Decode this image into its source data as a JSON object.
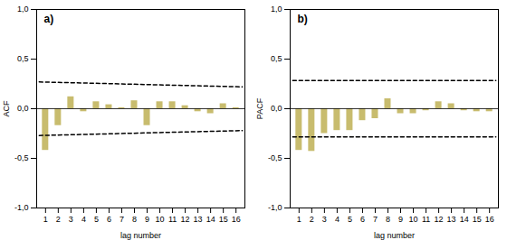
{
  "chart_data": [
    {
      "type": "bar",
      "x": [
        1,
        2,
        3,
        4,
        5,
        6,
        7,
        8,
        9,
        10,
        11,
        12,
        13,
        14,
        15,
        16
      ],
      "values": [
        -0.42,
        -0.17,
        0.12,
        -0.03,
        0.07,
        0.04,
        0.01,
        0.08,
        -0.17,
        0.07,
        0.07,
        0.03,
        -0.03,
        -0.05,
        0.05,
        0.01
      ],
      "color": "#c8bc6e",
      "xlim": [
        0.3,
        16.7
      ],
      "xticks": [
        1,
        2,
        3,
        4,
        5,
        6,
        7,
        8,
        9,
        10,
        11,
        12,
        13,
        14,
        15,
        16
      ],
      "ylim": [
        -1.0,
        1.0
      ],
      "yticks": [
        {
          "value": -1.0,
          "label": "-1,0"
        },
        {
          "value": -0.5,
          "label": "-0,5"
        },
        {
          "value": 0.0,
          "label": "0,0"
        },
        {
          "value": 0.5,
          "label": "0,5"
        },
        {
          "value": 1.0,
          "label": "1,0"
        }
      ],
      "xlabel": "lag number",
      "ylabel": "ACF",
      "annotation": "a)",
      "confidence_interval": {
        "x": [
          0.5,
          16.5
        ],
        "upper": [
          0.27,
          0.22
        ],
        "lower": [
          -0.27,
          -0.22
        ]
      }
    },
    {
      "type": "bar",
      "x": [
        1,
        2,
        3,
        4,
        5,
        6,
        7,
        8,
        9,
        10,
        11,
        12,
        13,
        14,
        15,
        16
      ],
      "values": [
        -0.42,
        -0.43,
        -0.25,
        -0.22,
        -0.22,
        -0.12,
        -0.1,
        0.1,
        -0.05,
        -0.05,
        -0.02,
        0.07,
        0.05,
        -0.02,
        -0.03,
        -0.03
      ],
      "color": "#c8bc6e",
      "xlim": [
        0.3,
        16.7
      ],
      "xticks": [
        1,
        2,
        3,
        4,
        5,
        6,
        7,
        8,
        9,
        10,
        11,
        12,
        13,
        14,
        15,
        16
      ],
      "ylim": [
        -1.0,
        1.0
      ],
      "yticks": [
        {
          "value": -1.0,
          "label": "-1,0"
        },
        {
          "value": -0.5,
          "label": "-0,5"
        },
        {
          "value": 0.0,
          "label": "0,0"
        },
        {
          "value": 0.5,
          "label": "0,5"
        },
        {
          "value": 1.0,
          "label": "1,0"
        }
      ],
      "xlabel": "lag number",
      "ylabel": "PACF",
      "annotation": "b)",
      "confidence_interval": {
        "x": [
          0.5,
          16.5
        ],
        "upper": [
          0.285,
          0.285
        ],
        "lower": [
          -0.285,
          -0.285
        ]
      }
    }
  ]
}
